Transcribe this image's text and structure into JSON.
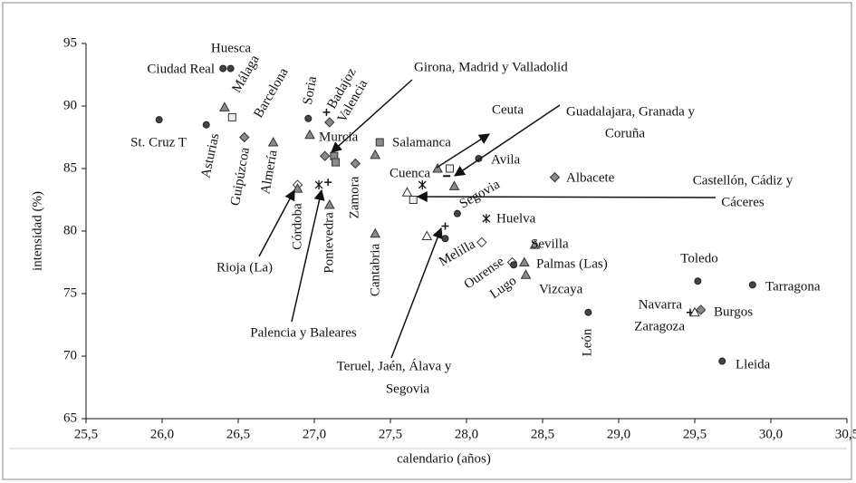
{
  "chart_data": {
    "type": "scatter",
    "x_label": "calendario (años)",
    "y_label": "intensidad (%)",
    "xlim": [
      25.5,
      30.5
    ],
    "ylim": [
      65,
      95
    ],
    "xticks": [
      {
        "value": 25.5,
        "label": "25,5"
      },
      {
        "value": 26,
        "label": "26,0"
      },
      {
        "value": 26.5,
        "label": "26,5"
      },
      {
        "value": 27,
        "label": "27,0"
      },
      {
        "value": 27.5,
        "label": "27,5"
      },
      {
        "value": 28,
        "label": "28,0"
      },
      {
        "value": 28.5,
        "label": "28,5"
      },
      {
        "value": 29,
        "label": "29,0"
      },
      {
        "value": 29.5,
        "label": "29,5"
      },
      {
        "value": 30,
        "label": "30,0"
      },
      {
        "value": 30.5,
        "label": "30,5"
      }
    ],
    "yticks": [
      65,
      70,
      75,
      80,
      85,
      90,
      95
    ],
    "points": [
      {
        "label": "Ciudad Real",
        "x": 26.4,
        "y": 93.0,
        "marker": "circle"
      },
      {
        "label": "Huesca",
        "x": 26.45,
        "y": 93.0,
        "marker": "circle"
      },
      {
        "label": "Málaga",
        "x": 26.41,
        "y": 89.9,
        "marker": "triangle"
      },
      {
        "label": "Barcelona",
        "x": 26.46,
        "y": 89.1,
        "marker": "square-open"
      },
      {
        "label": "St. Cruz T",
        "x": 25.98,
        "y": 88.9,
        "marker": "circle"
      },
      {
        "label": "Asturias",
        "x": 26.29,
        "y": 88.5,
        "marker": "circle"
      },
      {
        "label": "Guipúzcoa",
        "x": 26.54,
        "y": 87.5,
        "marker": "diamond"
      },
      {
        "label": "Almería",
        "x": 26.73,
        "y": 87.1,
        "marker": "triangle"
      },
      {
        "label": "Soria",
        "x": 26.96,
        "y": 89.0,
        "marker": "circle"
      },
      {
        "label": "Badajoz",
        "x": 27.08,
        "y": 89.5,
        "marker": "plus"
      },
      {
        "label": "Valencia",
        "x": 27.1,
        "y": 88.7,
        "marker": "diamond"
      },
      {
        "label": "Murcia",
        "x": 26.97,
        "y": 87.7,
        "marker": "triangle"
      },
      {
        "label": null,
        "x": 27.07,
        "y": 86.0,
        "marker": "diamond"
      },
      {
        "label": null,
        "x": 27.13,
        "y": 86.0,
        "marker": "square"
      },
      {
        "label": null,
        "x": 27.14,
        "y": 85.5,
        "marker": "square"
      },
      {
        "label": "Salamanca",
        "x": 27.43,
        "y": 87.1,
        "marker": "square"
      },
      {
        "label": null,
        "x": 27.4,
        "y": 86.1,
        "marker": "triangle"
      },
      {
        "label": "Zamora",
        "x": 27.27,
        "y": 85.4,
        "marker": "diamond"
      },
      {
        "label": "Córdoba",
        "x": 26.89,
        "y": 83.7,
        "marker": "diamond-open"
      },
      {
        "label": null,
        "x": 26.89,
        "y": 83.4,
        "marker": "triangle"
      },
      {
        "label": "Pontevedra",
        "x": 27.1,
        "y": 82.1,
        "marker": "triangle"
      },
      {
        "label": null,
        "x": 27.03,
        "y": 83.7,
        "marker": "star"
      },
      {
        "label": null,
        "x": 27.09,
        "y": 83.9,
        "marker": "plus"
      },
      {
        "label": "Cantabria",
        "x": 27.4,
        "y": 79.8,
        "marker": "triangle"
      },
      {
        "label": "Cuenca",
        "x": 27.71,
        "y": 83.7,
        "marker": "star"
      },
      {
        "label": null,
        "x": 27.61,
        "y": 83.1,
        "marker": "triangle-open"
      },
      {
        "label": null,
        "x": 27.65,
        "y": 82.5,
        "marker": "square-open"
      },
      {
        "label": null,
        "x": 27.81,
        "y": 85.0,
        "marker": "triangle"
      },
      {
        "label": null,
        "x": 27.89,
        "y": 85.0,
        "marker": "square-open"
      },
      {
        "label": null,
        "x": 27.87,
        "y": 84.4,
        "marker": "dash"
      },
      {
        "label": null,
        "x": 27.92,
        "y": 83.6,
        "marker": "triangle"
      },
      {
        "label": "Avila",
        "x": 28.08,
        "y": 85.8,
        "marker": "circle"
      },
      {
        "label": "Albacete",
        "x": 28.58,
        "y": 84.3,
        "marker": "diamond"
      },
      {
        "label": "Segovia",
        "x": 27.94,
        "y": 81.4,
        "marker": "circle"
      },
      {
        "label": "Huelva",
        "x": 28.13,
        "y": 81.0,
        "marker": "star"
      },
      {
        "label": null,
        "x": 27.74,
        "y": 79.6,
        "marker": "triangle-open"
      },
      {
        "label": null,
        "x": 27.86,
        "y": 80.4,
        "marker": "plus"
      },
      {
        "label": null,
        "x": 27.86,
        "y": 79.4,
        "marker": "circle"
      },
      {
        "label": "Melilla",
        "x": 28.1,
        "y": 79.1,
        "marker": "diamond-open"
      },
      {
        "label": "Sevilla",
        "x": 28.45,
        "y": 78.9,
        "marker": "triangle"
      },
      {
        "label": "Ourense",
        "x": 28.3,
        "y": 77.5,
        "marker": "diamond-open"
      },
      {
        "label": "Palmas (Las)",
        "x": 28.38,
        "y": 77.5,
        "marker": "triangle"
      },
      {
        "label": "Lugo",
        "x": 28.31,
        "y": 77.3,
        "marker": "circle"
      },
      {
        "label": "Vizcaya",
        "x": 28.39,
        "y": 76.5,
        "marker": "triangle"
      },
      {
        "label": "León",
        "x": 28.8,
        "y": 73.5,
        "marker": "circle"
      },
      {
        "label": "Toledo",
        "x": 29.52,
        "y": 76.0,
        "marker": "circle"
      },
      {
        "label": "Tarragona",
        "x": 29.88,
        "y": 75.7,
        "marker": "circle"
      },
      {
        "label": "Navarra",
        "x": 29.47,
        "y": 73.5,
        "marker": "plus"
      },
      {
        "label": "Zaragoza",
        "x": 29.5,
        "y": 73.5,
        "marker": "triangle-open"
      },
      {
        "label": "Burgos",
        "x": 29.54,
        "y": 73.7,
        "marker": "diamond"
      },
      {
        "label": "Lleida",
        "x": 29.68,
        "y": 69.6,
        "marker": "circle"
      }
    ],
    "annotations": [
      {
        "lines": [
          "Girona, Madrid y Valladolid"
        ]
      },
      {
        "lines": [
          "Ceuta"
        ]
      },
      {
        "lines": [
          "Guadalajara, Granada y",
          "Coruña"
        ]
      },
      {
        "lines": [
          "Castellón, Cádiz y",
          "Cáceres"
        ]
      },
      {
        "lines": [
          "Rioja (La)"
        ]
      },
      {
        "lines": [
          "Palencia y Baleares"
        ]
      },
      {
        "lines": [
          "Teruel, Jaén, Álava y",
          "Segovia"
        ]
      }
    ]
  }
}
